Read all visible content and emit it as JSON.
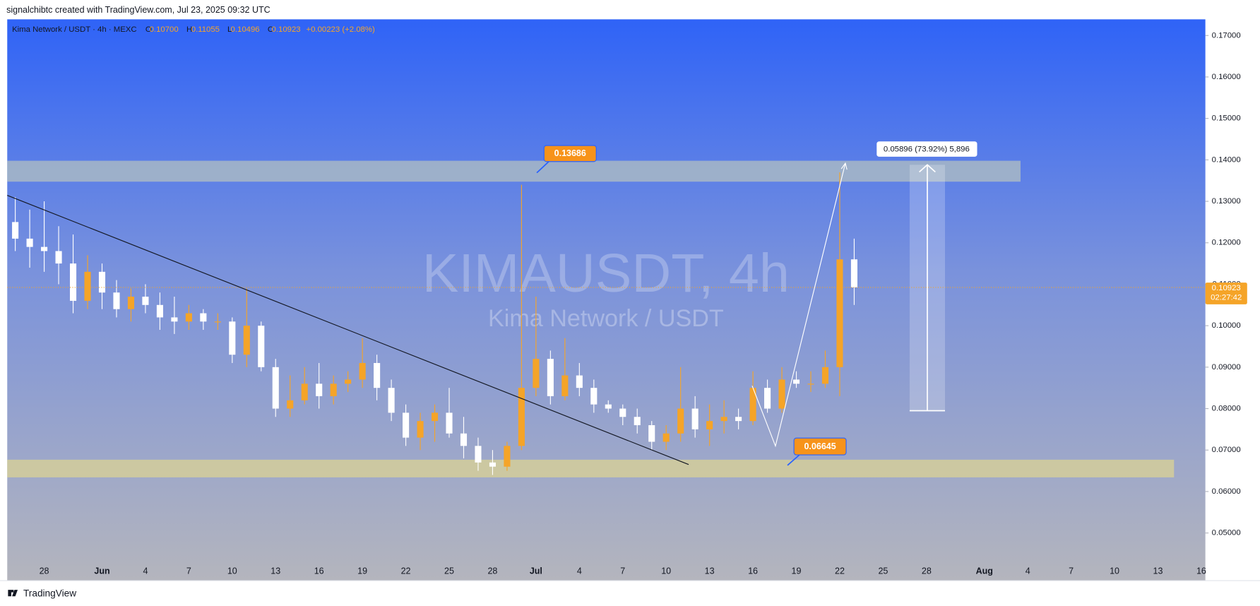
{
  "header": {
    "credit": "signalchibtc created with TradingView.com, Jul 23, 2025 09:32 UTC",
    "brand": "TradingView"
  },
  "chart_data": {
    "type": "candlestick",
    "symbol": "Kima Network / USDT · 4h · MEXC",
    "ohlc_labels": [
      "O",
      "H",
      "L",
      "C"
    ],
    "ohlc_values": [
      "0.10700",
      "0.11055",
      "0.10496",
      "0.10923"
    ],
    "change": "+0.00223 (+2.08%)",
    "watermark": "KIMAUSDT, 4h",
    "watermark_subtitle": "Kima Network / USDT",
    "annotations": [
      "0.13686",
      "0.06645",
      "0.05896 (73.92%) 5,896"
    ],
    "last_price": {
      "value": 0.10923,
      "label": "0.10923"
    },
    "countdown": "02:27:42",
    "up_color": "#f5a428",
    "down_color": "#ffffff",
    "categories": [
      null,
      null,
      "28",
      null,
      null,
      null,
      "Jun",
      null,
      null,
      "4",
      null,
      null,
      "7",
      null,
      null,
      "10",
      null,
      null,
      "13",
      null,
      null,
      "16",
      null,
      null,
      "19",
      null,
      null,
      "22",
      null,
      null,
      "25",
      null,
      null,
      "28",
      null,
      null,
      "Jul",
      null,
      null,
      "4",
      null,
      null,
      "7",
      null,
      null,
      "10",
      null,
      null,
      "13",
      null,
      null,
      "16",
      null,
      null,
      "19",
      null,
      null,
      "22",
      null,
      null,
      "25",
      null,
      null,
      "28",
      null,
      null,
      null,
      "Aug",
      null,
      null,
      "4",
      null,
      null,
      "7",
      null,
      null,
      "10",
      null,
      null,
      "13",
      null,
      null,
      "16"
    ],
    "open": [
      0.125,
      0.121,
      0.119,
      0.118,
      0.115,
      0.106,
      0.113,
      0.108,
      0.104,
      0.107,
      0.105,
      0.102,
      0.101,
      0.103,
      0.101,
      0.101,
      0.093,
      0.1,
      0.09,
      0.08,
      0.082,
      0.086,
      0.083,
      0.086,
      0.087,
      0.091,
      0.085,
      0.079,
      0.073,
      0.077,
      0.079,
      0.074,
      0.071,
      0.067,
      0.066,
      0.071,
      0.085,
      0.092,
      0.083,
      0.088,
      0.085,
      0.081,
      0.08,
      0.078,
      0.076,
      0.072,
      0.074,
      0.08,
      0.075,
      0.077,
      0.078,
      0.077,
      0.085,
      0.08,
      0.087,
      0.086,
      0.086,
      0.09,
      0.116,
      null,
      null,
      null,
      null,
      null,
      null,
      null,
      null,
      null,
      null,
      null,
      null,
      null,
      null,
      null,
      null,
      null,
      null,
      null,
      null,
      null,
      null,
      null,
      null
    ],
    "high": [
      0.131,
      0.128,
      0.13,
      0.124,
      0.122,
      0.117,
      0.115,
      0.111,
      0.109,
      0.11,
      0.108,
      0.107,
      0.105,
      0.104,
      0.103,
      0.102,
      0.109,
      0.101,
      0.092,
      0.088,
      0.09,
      0.091,
      0.088,
      0.089,
      0.097,
      0.093,
      0.087,
      0.081,
      0.079,
      0.081,
      0.085,
      0.078,
      0.073,
      0.07,
      0.072,
      0.134,
      0.107,
      0.094,
      0.097,
      0.091,
      0.087,
      0.082,
      0.081,
      0.08,
      0.077,
      0.076,
      0.09,
      0.083,
      0.081,
      0.082,
      0.08,
      0.089,
      0.087,
      0.09,
      0.089,
      0.089,
      0.094,
      0.137,
      0.121,
      null,
      null,
      null,
      null,
      null,
      null,
      null,
      null,
      null,
      null,
      null,
      null,
      null,
      null,
      null,
      null,
      null,
      null,
      null,
      null,
      null,
      null,
      null,
      null
    ],
    "low": [
      0.118,
      0.114,
      0.113,
      0.11,
      0.103,
      0.104,
      0.104,
      0.102,
      0.101,
      0.103,
      0.099,
      0.098,
      0.099,
      0.099,
      0.099,
      0.091,
      0.09,
      0.089,
      0.078,
      0.078,
      0.081,
      0.08,
      0.081,
      0.084,
      0.085,
      0.082,
      0.077,
      0.071,
      0.07,
      0.072,
      0.073,
      0.068,
      0.065,
      0.064,
      0.065,
      0.07,
      0.083,
      0.081,
      0.082,
      0.083,
      0.079,
      0.079,
      0.076,
      0.074,
      0.07,
      0.07,
      0.072,
      0.073,
      0.071,
      0.074,
      0.075,
      0.076,
      0.079,
      0.079,
      0.085,
      0.084,
      0.085,
      0.083,
      0.105,
      null,
      null,
      null,
      null,
      null,
      null,
      null,
      null,
      null,
      null,
      null,
      null,
      null,
      null,
      null,
      null,
      null,
      null,
      null,
      null,
      null,
      null,
      null,
      null
    ],
    "close": [
      0.121,
      0.119,
      0.118,
      0.115,
      0.106,
      0.113,
      0.108,
      0.104,
      0.107,
      0.105,
      0.102,
      0.101,
      0.103,
      0.101,
      0.101,
      0.093,
      0.1,
      0.09,
      0.08,
      0.082,
      0.086,
      0.083,
      0.086,
      0.087,
      0.091,
      0.085,
      0.079,
      0.073,
      0.077,
      0.079,
      0.074,
      0.071,
      0.067,
      0.066,
      0.071,
      0.085,
      0.092,
      0.083,
      0.088,
      0.085,
      0.081,
      0.08,
      0.078,
      0.076,
      0.072,
      0.074,
      0.08,
      0.075,
      0.077,
      0.078,
      0.077,
      0.085,
      0.08,
      0.087,
      0.086,
      0.086,
      0.09,
      0.116,
      0.10923,
      null,
      null,
      null,
      null,
      null,
      null,
      null,
      null,
      null,
      null,
      null,
      null,
      null,
      null,
      null,
      null,
      null,
      null,
      null,
      null,
      null,
      null,
      null,
      null
    ],
    "ylim": [
      0.0386,
      0.1739
    ],
    "yticks": [
      {
        "value": 0.05,
        "label": "0.05000"
      },
      {
        "value": 0.06,
        "label": "0.06000"
      },
      {
        "value": 0.07,
        "label": "0.07000"
      },
      {
        "value": 0.08,
        "label": "0.08000"
      },
      {
        "value": 0.09,
        "label": "0.09000"
      },
      {
        "value": 0.1,
        "label": "0.10000"
      },
      {
        "value": 0.11,
        "label": "0.11000"
      },
      {
        "value": 0.12,
        "label": "0.12000"
      },
      {
        "value": 0.13,
        "label": "0.13000"
      },
      {
        "value": 0.14,
        "label": "0.14000"
      },
      {
        "value": 0.15,
        "label": "0.15000"
      },
      {
        "value": 0.16,
        "label": "0.16000"
      },
      {
        "value": 0.17,
        "label": "0.17000"
      }
    ]
  }
}
